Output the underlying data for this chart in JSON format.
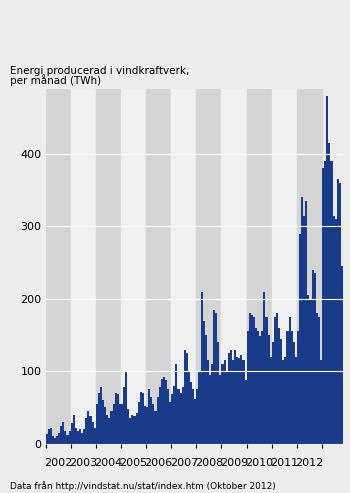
{
  "ylabel_line1": "Energi producerad i vindkraftverk,",
  "ylabel_line2": "per månad (TWh)",
  "source": "Data från http://vindstat.nu/stat/index.htm (Oktober 2012)",
  "bar_color": "#1a3a8a",
  "bg_color": "#ececec",
  "stripe_even": "#d4d4d4",
  "stripe_odd": "#f0f0f0",
  "yticks": [
    0,
    100,
    200,
    300,
    400
  ],
  "ylim": [
    0,
    490
  ],
  "year_labels": [
    "2002",
    "2003",
    "2004",
    "2005",
    "2006",
    "2007",
    "2008",
    "2009",
    "2010",
    "2011",
    "2012"
  ],
  "values": [
    14,
    20,
    22,
    10,
    8,
    10,
    15,
    25,
    30,
    18,
    12,
    18,
    28,
    40,
    22,
    18,
    20,
    15,
    20,
    35,
    45,
    38,
    30,
    22,
    55,
    70,
    78,
    60,
    50,
    40,
    35,
    45,
    55,
    70,
    68,
    55,
    55,
    78,
    100,
    48,
    35,
    40,
    38,
    42,
    58,
    72,
    70,
    52,
    50,
    75,
    65,
    55,
    45,
    65,
    78,
    90,
    92,
    88,
    75,
    58,
    68,
    80,
    110,
    75,
    70,
    78,
    130,
    125,
    100,
    85,
    75,
    62,
    75,
    100,
    210,
    170,
    150,
    115,
    95,
    110,
    185,
    180,
    140,
    95,
    110,
    115,
    100,
    125,
    130,
    115,
    130,
    120,
    118,
    122,
    115,
    88,
    155,
    180,
    178,
    175,
    160,
    155,
    148,
    155,
    210,
    175,
    150,
    120,
    140,
    175,
    180,
    160,
    145,
    115,
    120,
    155,
    175,
    155,
    140,
    120,
    155,
    290,
    340,
    315,
    335,
    205,
    200,
    240,
    235,
    180,
    175,
    115,
    380,
    390,
    480,
    415,
    390,
    315,
    310,
    365,
    360,
    245
  ]
}
